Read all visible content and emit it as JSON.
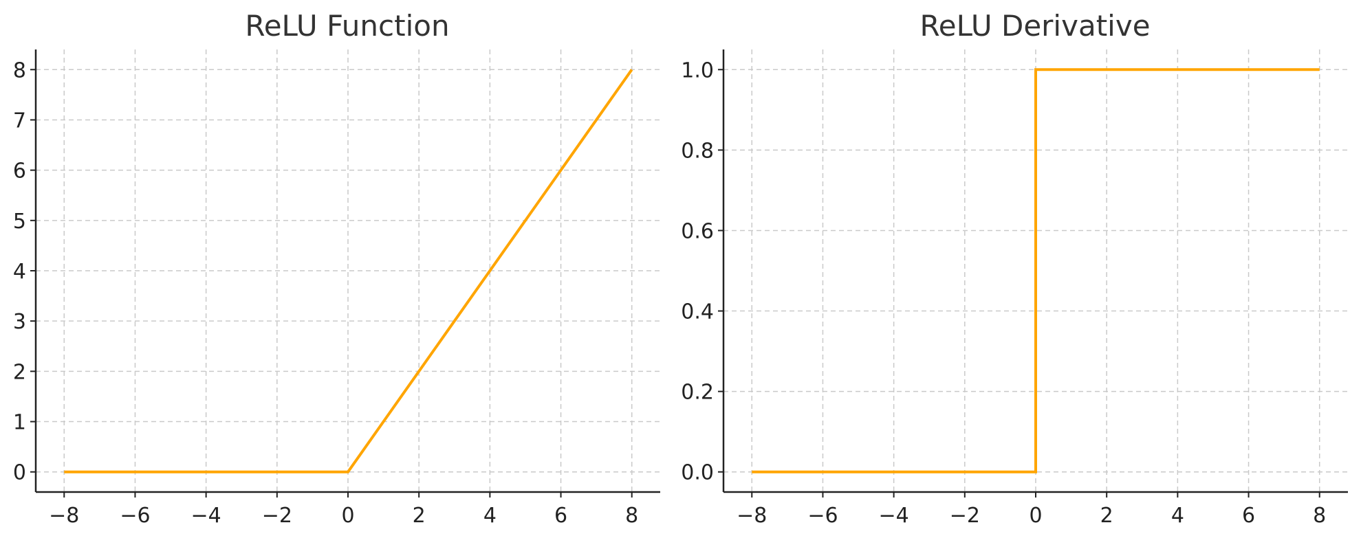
{
  "chart_data": [
    {
      "type": "line",
      "title": "ReLU Function",
      "xlabel": "",
      "ylabel": "",
      "xlim": [
        -8.8,
        8.8
      ],
      "ylim": [
        -0.4,
        8.4
      ],
      "xticks": [
        -8,
        -6,
        -4,
        -2,
        0,
        2,
        4,
        6,
        8
      ],
      "xtick_labels": [
        "−8",
        "−6",
        "−4",
        "−2",
        "0",
        "2",
        "4",
        "6",
        "8"
      ],
      "yticks": [
        0,
        1,
        2,
        3,
        4,
        5,
        6,
        7,
        8
      ],
      "ytick_labels": [
        "0",
        "1",
        "2",
        "3",
        "4",
        "5",
        "6",
        "7",
        "8"
      ],
      "grid": true,
      "series": [
        {
          "color": "#FFA500",
          "x": [
            -8,
            0,
            8
          ],
          "y": [
            0,
            0,
            8
          ]
        }
      ]
    },
    {
      "type": "line",
      "title": "ReLU Derivative",
      "xlabel": "",
      "ylabel": "",
      "xlim": [
        -8.8,
        8.8
      ],
      "ylim": [
        -0.05,
        1.05
      ],
      "xticks": [
        -8,
        -6,
        -4,
        -2,
        0,
        2,
        4,
        6,
        8
      ],
      "xtick_labels": [
        "−8",
        "−6",
        "−4",
        "−2",
        "0",
        "2",
        "4",
        "6",
        "8"
      ],
      "yticks": [
        0,
        0.2,
        0.4,
        0.6,
        0.8,
        1.0
      ],
      "ytick_labels": [
        "0.0",
        "0.2",
        "0.4",
        "0.6",
        "0.8",
        "1.0"
      ],
      "grid": true,
      "series": [
        {
          "color": "#FFA500",
          "x": [
            -8,
            0,
            0,
            8
          ],
          "y": [
            0,
            0,
            1,
            1
          ]
        }
      ]
    }
  ]
}
